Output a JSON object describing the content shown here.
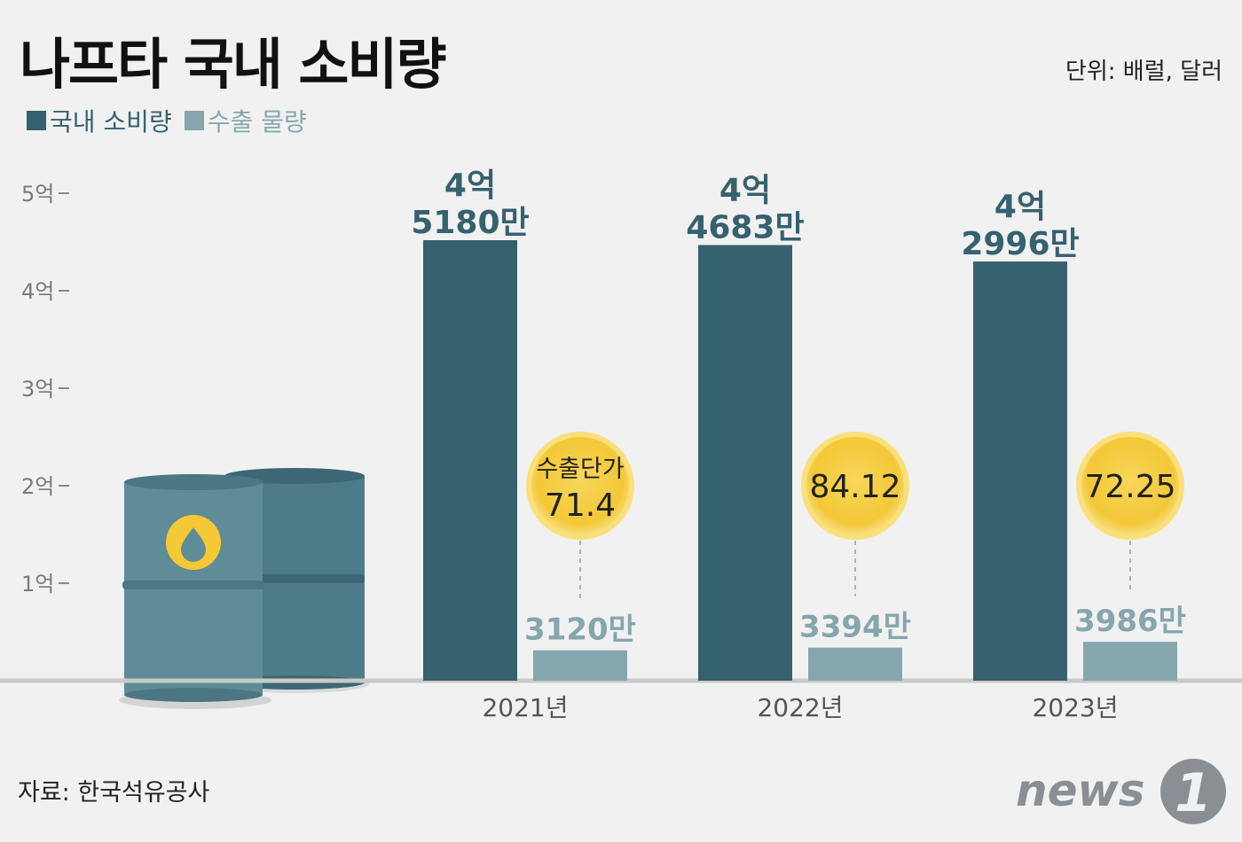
{
  "title": "나프타 국내 소비량",
  "unit": "단위: 배럴, 달러",
  "source": "자료: 한국석유공사",
  "logo": {
    "text": "news",
    "mark": "1"
  },
  "colors": {
    "domestic": "#36616f",
    "export": "#86a6ad",
    "coin": "#f6cf3f",
    "coin_edge": "#fae07a"
  },
  "chart_data": {
    "type": "bar",
    "categories": [
      "2021년",
      "2022년",
      "2023년"
    ],
    "ylim": [
      0,
      500000000
    ],
    "yticks": [
      "1억",
      "2억",
      "3억",
      "4억",
      "5억"
    ],
    "ytick_values": [
      100000000,
      200000000,
      300000000,
      400000000,
      500000000
    ],
    "legend_position": "top-left",
    "series": [
      {
        "name": "국내 소비량",
        "values": [
          451800000,
          446830000,
          429960000
        ],
        "labels": [
          [
            "4억",
            "5180만"
          ],
          [
            "4억",
            "4683만"
          ],
          [
            "4억",
            "2996만"
          ]
        ]
      },
      {
        "name": "수출 물량",
        "values": [
          31200000,
          33940000,
          39860000
        ],
        "labels": [
          "3120만",
          "3394만",
          "3986만"
        ]
      }
    ],
    "annotations": {
      "price_label": "수출단가",
      "prices": [
        "71.4",
        "84.12",
        "72.25"
      ]
    }
  }
}
